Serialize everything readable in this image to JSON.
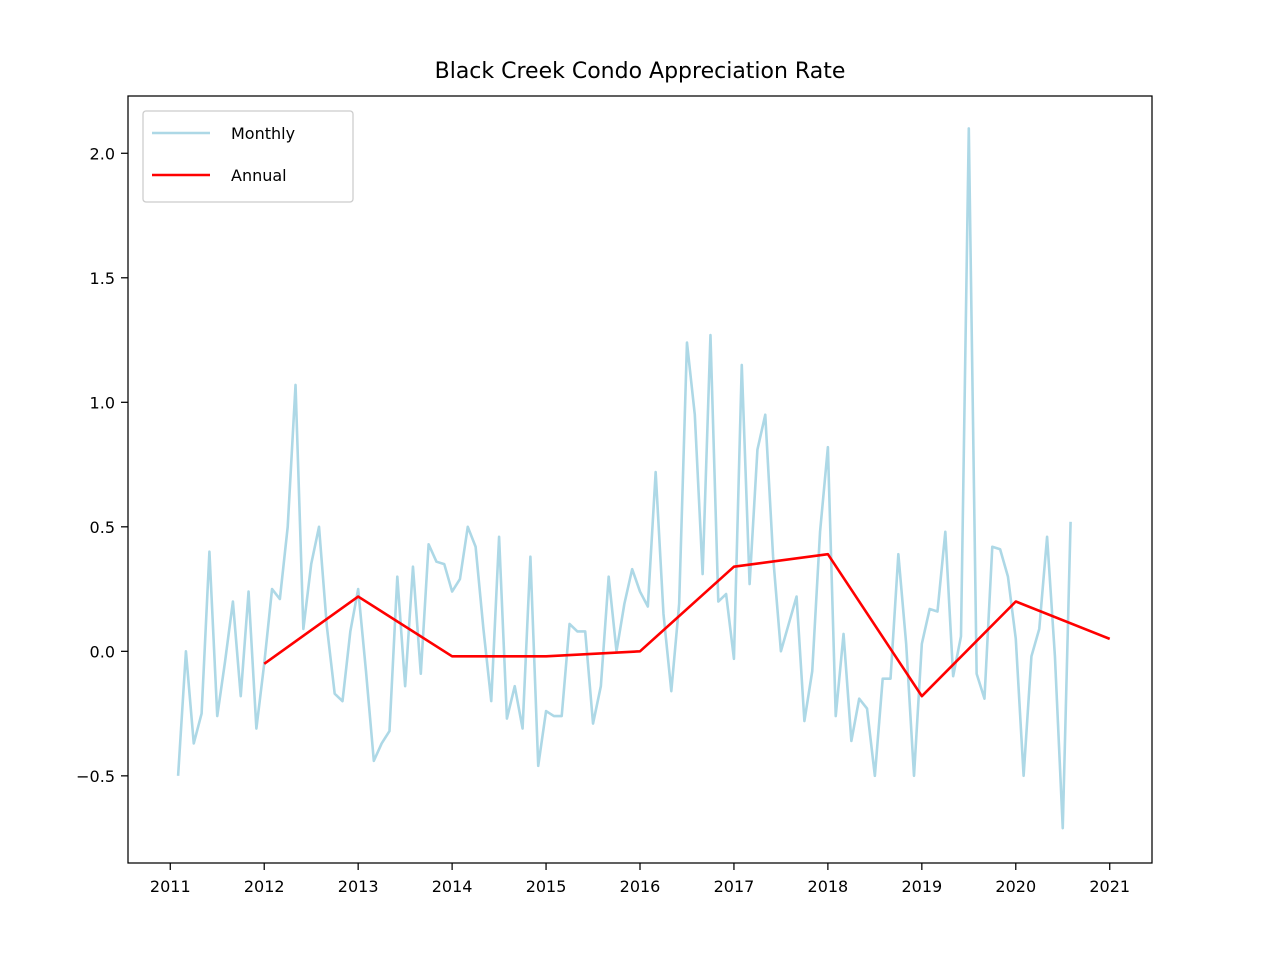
{
  "chart_data": {
    "type": "line",
    "title": "Black Creek Condo Appreciation Rate",
    "xlabel": "",
    "ylabel": "",
    "xlim": [
      2010.55,
      2021.45
    ],
    "ylim": [
      -0.85,
      2.23
    ],
    "x_ticks": [
      2011,
      2012,
      2013,
      2014,
      2015,
      2016,
      2017,
      2018,
      2019,
      2020,
      2021
    ],
    "x_tick_labels": [
      "2011",
      "2012",
      "2013",
      "2014",
      "2015",
      "2016",
      "2017",
      "2018",
      "2019",
      "2020",
      "2021"
    ],
    "y_ticks": [
      -0.5,
      0.0,
      0.5,
      1.0,
      1.5,
      2.0
    ],
    "y_tick_labels": [
      "−0.5",
      "0.0",
      "0.5",
      "1.0",
      "1.5",
      "2.0"
    ],
    "grid": false,
    "legend_position": "top-left",
    "series": [
      {
        "name": "Monthly",
        "color": "#add8e6",
        "x_start": 2011.083333,
        "x_step": 0.083333,
        "values": [
          -0.5,
          0.0,
          -0.37,
          -0.25,
          0.4,
          -0.26,
          -0.04,
          0.2,
          -0.18,
          0.24,
          -0.31,
          -0.05,
          0.25,
          0.21,
          0.5,
          1.07,
          0.09,
          0.35,
          0.5,
          0.1,
          -0.17,
          -0.2,
          0.08,
          0.25,
          -0.08,
          -0.44,
          -0.37,
          -0.32,
          0.3,
          -0.14,
          0.34,
          -0.09,
          0.43,
          0.36,
          0.35,
          0.24,
          0.29,
          0.5,
          0.42,
          0.09,
          -0.2,
          0.46,
          -0.27,
          -0.14,
          -0.31,
          0.38,
          -0.46,
          -0.24,
          -0.26,
          -0.26,
          0.11,
          0.08,
          0.08,
          -0.29,
          -0.14,
          0.3,
          0.0,
          0.19,
          0.33,
          0.24,
          0.18,
          0.72,
          0.15,
          -0.16,
          0.19,
          1.24,
          0.95,
          0.31,
          1.27,
          0.2,
          0.23,
          -0.03,
          1.15,
          0.27,
          0.81,
          0.95,
          0.38,
          0.0,
          0.11,
          0.22,
          -0.28,
          -0.08,
          0.48,
          0.82,
          -0.26,
          0.07,
          -0.36,
          -0.19,
          -0.23,
          -0.5,
          -0.11,
          -0.11,
          0.39,
          0.03,
          -0.5,
          0.03,
          0.17,
          0.16,
          0.48,
          -0.1,
          0.06,
          2.1,
          -0.09,
          -0.19,
          0.42,
          0.41,
          0.3,
          0.05,
          -0.5,
          -0.02,
          0.09,
          0.46,
          -0.02,
          -0.71,
          0.52
        ]
      },
      {
        "name": "Annual",
        "color": "#ff0000",
        "x": [
          2012,
          2013,
          2014,
          2015,
          2016,
          2017,
          2018,
          2019,
          2020,
          2021
        ],
        "values": [
          -0.05,
          0.22,
          -0.02,
          -0.02,
          0.0,
          0.34,
          0.39,
          -0.18,
          0.2,
          0.05
        ]
      }
    ]
  }
}
